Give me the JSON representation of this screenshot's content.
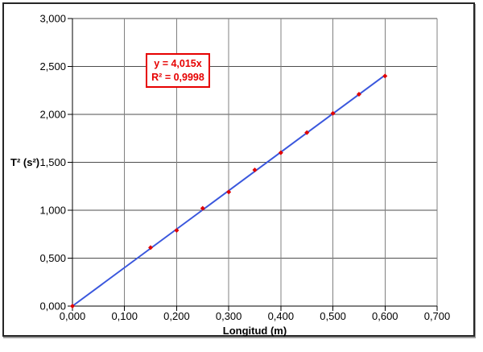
{
  "chart_data": {
    "type": "scatter",
    "title": "",
    "xlabel": "Longitud (m)",
    "ylabel": "T² (s²)",
    "x": [
      0.0,
      0.15,
      0.2,
      0.25,
      0.3,
      0.35,
      0.4,
      0.45,
      0.5,
      0.55,
      0.6
    ],
    "y": [
      0.0,
      0.61,
      0.79,
      1.02,
      1.19,
      1.42,
      1.6,
      1.81,
      2.01,
      2.21,
      2.4
    ],
    "xlim": [
      0,
      0.7
    ],
    "ylim": [
      0,
      3
    ],
    "xticks": [
      0,
      0.1,
      0.2,
      0.3,
      0.4,
      0.5,
      0.6,
      0.7
    ],
    "yticks": [
      0,
      0.5,
      1.0,
      1.5,
      2.0,
      2.5,
      3.0
    ],
    "xtick_labels": [
      "0,000",
      "0,100",
      "0,200",
      "0,300",
      "0,400",
      "0,500",
      "0,600",
      "0,700"
    ],
    "ytick_labels": [
      "0,000",
      "0,500",
      "1,000",
      "1,500",
      "2,000",
      "2,500",
      "3,000"
    ],
    "grid": true,
    "legend": false,
    "marker_shape": "diamond",
    "trendline": {
      "slope": 4.015,
      "x_start": 0,
      "x_end": 0.6,
      "equation": "y = 4,015x",
      "r_squared": "R² = 0,9998"
    },
    "colors": {
      "trendline": "#3a57dd",
      "marker": "#e00000",
      "equation": "#e60000",
      "gridline_h": "#4d4d4d",
      "gridline_v": "#808080",
      "axis": "#000000",
      "frame_border": "#262626",
      "background": "#ffffff",
      "text": "#000000"
    }
  }
}
